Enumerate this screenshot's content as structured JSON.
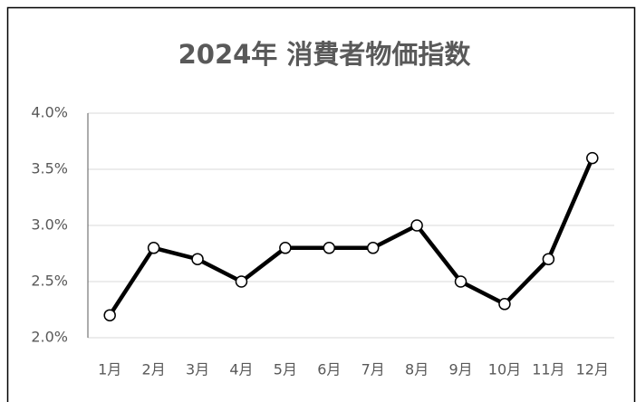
{
  "chart_data": {
    "type": "line",
    "title": "2024年 消費者物価指数",
    "categories": [
      "1月",
      "2月",
      "3月",
      "4月",
      "5月",
      "6月",
      "7月",
      "8月",
      "9月",
      "10月",
      "11月",
      "12月"
    ],
    "values": [
      2.2,
      2.8,
      2.7,
      2.5,
      2.8,
      2.8,
      2.8,
      3.0,
      2.5,
      2.3,
      2.7,
      3.6
    ],
    "color": "#000000",
    "ylim": [
      2,
      4
    ],
    "yticks": [
      {
        "value": 2,
        "label": "2.0%"
      },
      {
        "value": 2.5,
        "label": "2.5%"
      },
      {
        "value": 3,
        "label": "3.0%"
      },
      {
        "value": 3.5,
        "label": "3.5%"
      },
      {
        "value": 4,
        "label": "4.0%"
      }
    ],
    "grid": true
  }
}
